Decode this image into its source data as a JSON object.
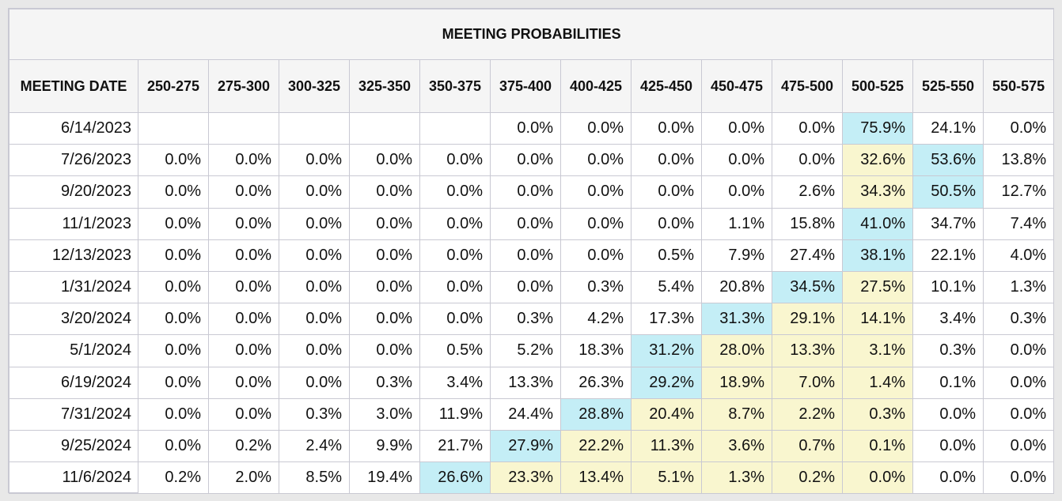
{
  "chart_data": {
    "type": "table",
    "title": "MEETING PROBABILITIES",
    "first_column_header": "MEETING DATE",
    "columns": [
      "250-275",
      "275-300",
      "300-325",
      "325-350",
      "350-375",
      "375-400",
      "400-425",
      "425-450",
      "450-475",
      "475-500",
      "500-525",
      "525-550",
      "550-575"
    ],
    "rows": [
      {
        "date": "6/14/2023",
        "values": [
          "",
          "",
          "",
          "",
          "",
          "0.0%",
          "0.0%",
          "0.0%",
          "0.0%",
          "0.0%",
          "75.9%",
          "24.1%",
          "0.0%"
        ],
        "highlight_max": 10,
        "highlight_range": [
          10,
          10
        ]
      },
      {
        "date": "7/26/2023",
        "values": [
          "0.0%",
          "0.0%",
          "0.0%",
          "0.0%",
          "0.0%",
          "0.0%",
          "0.0%",
          "0.0%",
          "0.0%",
          "0.0%",
          "32.6%",
          "53.6%",
          "13.8%"
        ],
        "highlight_max": 11,
        "highlight_range": [
          10,
          11
        ]
      },
      {
        "date": "9/20/2023",
        "values": [
          "0.0%",
          "0.0%",
          "0.0%",
          "0.0%",
          "0.0%",
          "0.0%",
          "0.0%",
          "0.0%",
          "0.0%",
          "2.6%",
          "34.3%",
          "50.5%",
          "12.7%"
        ],
        "highlight_max": 11,
        "highlight_range": [
          10,
          11
        ]
      },
      {
        "date": "11/1/2023",
        "values": [
          "0.0%",
          "0.0%",
          "0.0%",
          "0.0%",
          "0.0%",
          "0.0%",
          "0.0%",
          "0.0%",
          "1.1%",
          "15.8%",
          "41.0%",
          "34.7%",
          "7.4%"
        ],
        "highlight_max": 10,
        "highlight_range": [
          10,
          10
        ]
      },
      {
        "date": "12/13/2023",
        "values": [
          "0.0%",
          "0.0%",
          "0.0%",
          "0.0%",
          "0.0%",
          "0.0%",
          "0.0%",
          "0.5%",
          "7.9%",
          "27.4%",
          "38.1%",
          "22.1%",
          "4.0%"
        ],
        "highlight_max": 10,
        "highlight_range": [
          10,
          10
        ]
      },
      {
        "date": "1/31/2024",
        "values": [
          "0.0%",
          "0.0%",
          "0.0%",
          "0.0%",
          "0.0%",
          "0.0%",
          "0.3%",
          "5.4%",
          "20.8%",
          "34.5%",
          "27.5%",
          "10.1%",
          "1.3%"
        ],
        "highlight_max": 9,
        "highlight_range": [
          9,
          10
        ]
      },
      {
        "date": "3/20/2024",
        "values": [
          "0.0%",
          "0.0%",
          "0.0%",
          "0.0%",
          "0.0%",
          "0.3%",
          "4.2%",
          "17.3%",
          "31.3%",
          "29.1%",
          "14.1%",
          "3.4%",
          "0.3%"
        ],
        "highlight_max": 8,
        "highlight_range": [
          8,
          10
        ]
      },
      {
        "date": "5/1/2024",
        "values": [
          "0.0%",
          "0.0%",
          "0.0%",
          "0.0%",
          "0.5%",
          "5.2%",
          "18.3%",
          "31.2%",
          "28.0%",
          "13.3%",
          "3.1%",
          "0.3%",
          "0.0%"
        ],
        "highlight_max": 7,
        "highlight_range": [
          7,
          10
        ]
      },
      {
        "date": "6/19/2024",
        "values": [
          "0.0%",
          "0.0%",
          "0.0%",
          "0.3%",
          "3.4%",
          "13.3%",
          "26.3%",
          "29.2%",
          "18.9%",
          "7.0%",
          "1.4%",
          "0.1%",
          "0.0%"
        ],
        "highlight_max": 7,
        "highlight_range": [
          7,
          10
        ]
      },
      {
        "date": "7/31/2024",
        "values": [
          "0.0%",
          "0.0%",
          "0.3%",
          "3.0%",
          "11.9%",
          "24.4%",
          "28.8%",
          "20.4%",
          "8.7%",
          "2.2%",
          "0.3%",
          "0.0%",
          "0.0%"
        ],
        "highlight_max": 6,
        "highlight_range": [
          6,
          10
        ]
      },
      {
        "date": "9/25/2024",
        "values": [
          "0.0%",
          "0.2%",
          "2.4%",
          "9.9%",
          "21.7%",
          "27.9%",
          "22.2%",
          "11.3%",
          "3.6%",
          "0.7%",
          "0.1%",
          "0.0%",
          "0.0%"
        ],
        "highlight_max": 5,
        "highlight_range": [
          5,
          10
        ]
      },
      {
        "date": "11/6/2024",
        "values": [
          "0.2%",
          "2.0%",
          "8.5%",
          "19.4%",
          "26.6%",
          "23.3%",
          "13.4%",
          "5.1%",
          "1.3%",
          "0.2%",
          "0.0%",
          "0.0%",
          "0.0%"
        ],
        "highlight_max": 4,
        "highlight_range": [
          4,
          10
        ]
      }
    ],
    "colors": {
      "max_probability": "#c4eef6",
      "shaded_range": "#f9f6cf",
      "header_background": "#f5f5f5",
      "border": "#c9c9d3"
    }
  }
}
